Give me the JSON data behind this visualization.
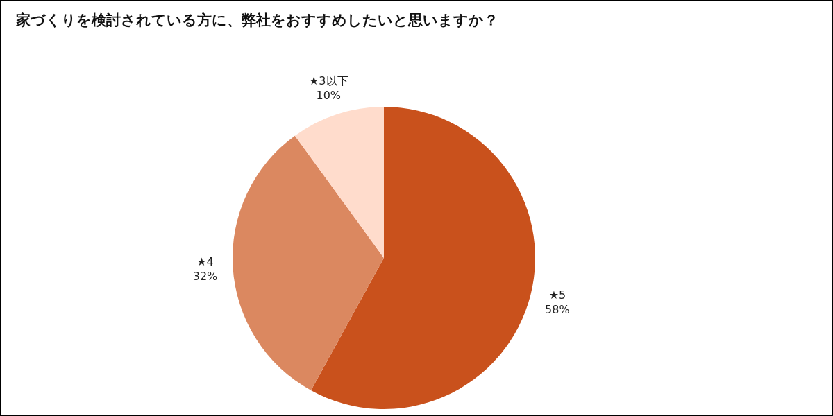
{
  "chart_data": {
    "type": "pie",
    "title": "家づくりを検討されている方に、弊社をおすすめしたいと思いますか？",
    "categories": [
      "★5",
      "★4",
      "★3以下"
    ],
    "values": [
      58,
      32,
      10
    ],
    "value_labels": [
      "58%",
      "32%",
      "10%"
    ],
    "colors": [
      "#c9511c",
      "#db8860",
      "#ffdccc"
    ],
    "legend": false
  }
}
